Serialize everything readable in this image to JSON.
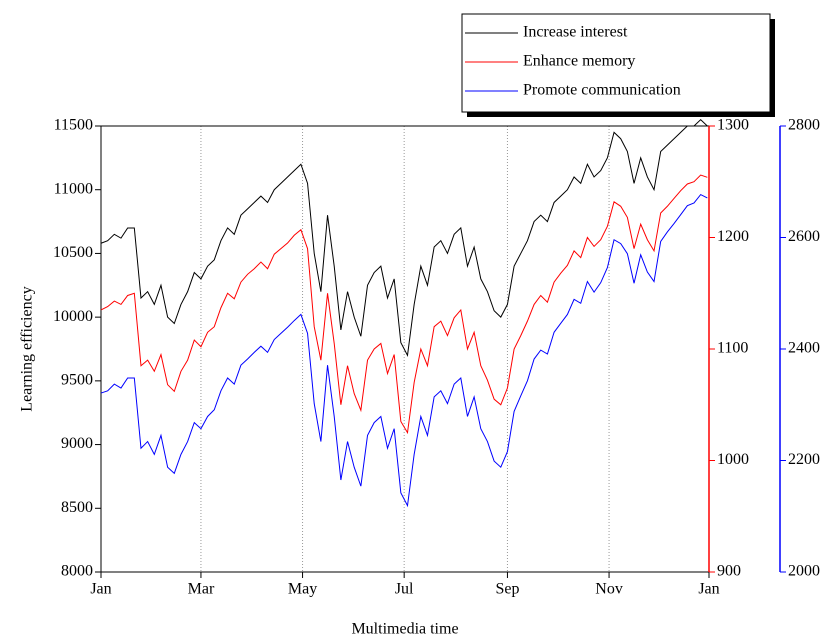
{
  "chart_data": {
    "type": "line",
    "xlabel": "Multimedia time",
    "ylabel": "Learning efficiency",
    "legend": "top-right",
    "grid": "x",
    "x": [
      0,
      4,
      8,
      12,
      16,
      20,
      24,
      28,
      32,
      36,
      40,
      44,
      48,
      52,
      56,
      60,
      64,
      68,
      72,
      76,
      80,
      84,
      88,
      92,
      96,
      100,
      104,
      108,
      112,
      116,
      120,
      124,
      128,
      132,
      136,
      140,
      144,
      148,
      152,
      156,
      160,
      164,
      168,
      172,
      176,
      180,
      184,
      188,
      192,
      196,
      200,
      204,
      208,
      212,
      216,
      220,
      224,
      228,
      232,
      236,
      240,
      244,
      248,
      252,
      256,
      260,
      264,
      268,
      272,
      276,
      280,
      284,
      288,
      292,
      296,
      300,
      304,
      308,
      312,
      316,
      320,
      324,
      328,
      332,
      336,
      340,
      344,
      348,
      352,
      356,
      360,
      364
    ],
    "xlim": [
      0,
      365
    ],
    "xticks": [
      {
        "value": 0,
        "label": "Jan"
      },
      {
        "value": 60,
        "label": "Mar"
      },
      {
        "value": 121,
        "label": "May"
      },
      {
        "value": 182,
        "label": "Jul"
      },
      {
        "value": 244,
        "label": "Sep"
      },
      {
        "value": 305,
        "label": "Nov"
      },
      {
        "value": 365,
        "label": "Jan"
      }
    ],
    "ylim": [
      8000,
      11500
    ],
    "yticks": [
      8000,
      8500,
      9000,
      9500,
      10000,
      10500,
      11000,
      11500
    ],
    "y2lim": [
      900,
      1300
    ],
    "y2ticks": [
      900,
      1000,
      1100,
      1200,
      1300
    ],
    "y2color": "#ff0000",
    "y3lim": [
      2000,
      2800
    ],
    "y3ticks": [
      2000,
      2200,
      2400,
      2600,
      2800
    ],
    "y3color": "#0000ff",
    "series": [
      {
        "name": "Increase interest",
        "color": "#000000",
        "axis": "y",
        "values": [
          10580,
          10600,
          10650,
          10620,
          10700,
          10700,
          10150,
          10200,
          10100,
          10250,
          10000,
          9950,
          10100,
          10200,
          10350,
          10300,
          10400,
          10450,
          10600,
          10700,
          10650,
          10800,
          10850,
          10900,
          10950,
          10900,
          11000,
          11050,
          11100,
          11150,
          11200,
          11050,
          10500,
          10200,
          10800,
          10400,
          9900,
          10200,
          10000,
          9850,
          10250,
          10350,
          10400,
          10150,
          10300,
          9800,
          9700,
          10100,
          10400,
          10250,
          10550,
          10600,
          10500,
          10650,
          10700,
          10400,
          10550,
          10300,
          10200,
          10050,
          10000,
          10100,
          10400,
          10500,
          10600,
          10750,
          10800,
          10750,
          10900,
          10950,
          11000,
          11100,
          11050,
          11200,
          11100,
          11150,
          11250,
          11450,
          11400,
          11300,
          11050,
          11250,
          11100,
          11000,
          11300,
          11350,
          11400,
          11450,
          11500,
          11500,
          11550,
          11500
        ]
      },
      {
        "name": "Enhance memory",
        "color": "#ff0000",
        "axis": "y2",
        "values": [
          1135,
          1138,
          1143,
          1140,
          1148,
          1150,
          1085,
          1090,
          1080,
          1095,
          1068,
          1062,
          1080,
          1090,
          1108,
          1102,
          1115,
          1120,
          1137,
          1150,
          1145,
          1160,
          1167,
          1172,
          1178,
          1172,
          1185,
          1190,
          1195,
          1202,
          1207,
          1190,
          1120,
          1090,
          1150,
          1105,
          1050,
          1085,
          1060,
          1045,
          1090,
          1100,
          1105,
          1078,
          1095,
          1035,
          1025,
          1070,
          1100,
          1085,
          1120,
          1125,
          1112,
          1128,
          1135,
          1100,
          1115,
          1085,
          1072,
          1055,
          1050,
          1065,
          1100,
          1112,
          1125,
          1140,
          1148,
          1142,
          1160,
          1168,
          1175,
          1188,
          1182,
          1200,
          1192,
          1198,
          1210,
          1232,
          1228,
          1218,
          1190,
          1212,
          1198,
          1188,
          1222,
          1228,
          1235,
          1242,
          1248,
          1250,
          1256,
          1254
        ]
      },
      {
        "name": "Promote communication",
        "color": "#0000ff",
        "axis": "y3",
        "values": [
          2321,
          2325,
          2337,
          2330,
          2348,
          2348,
          2222,
          2234,
          2211,
          2245,
          2188,
          2177,
          2211,
          2234,
          2268,
          2257,
          2279,
          2291,
          2325,
          2348,
          2337,
          2371,
          2382,
          2394,
          2405,
          2394,
          2417,
          2428,
          2439,
          2451,
          2462,
          2428,
          2302,
          2234,
          2371,
          2279,
          2165,
          2234,
          2188,
          2154,
          2245,
          2268,
          2279,
          2222,
          2257,
          2142,
          2119,
          2211,
          2279,
          2245,
          2314,
          2325,
          2302,
          2337,
          2348,
          2279,
          2314,
          2257,
          2234,
          2199,
          2188,
          2216,
          2288,
          2316,
          2343,
          2382,
          2398,
          2391,
          2430,
          2446,
          2462,
          2489,
          2482,
          2521,
          2502,
          2519,
          2546,
          2596,
          2589,
          2571,
          2518,
          2569,
          2538,
          2521,
          2593,
          2610,
          2625,
          2641,
          2657,
          2662,
          2677,
          2671
        ]
      }
    ]
  }
}
